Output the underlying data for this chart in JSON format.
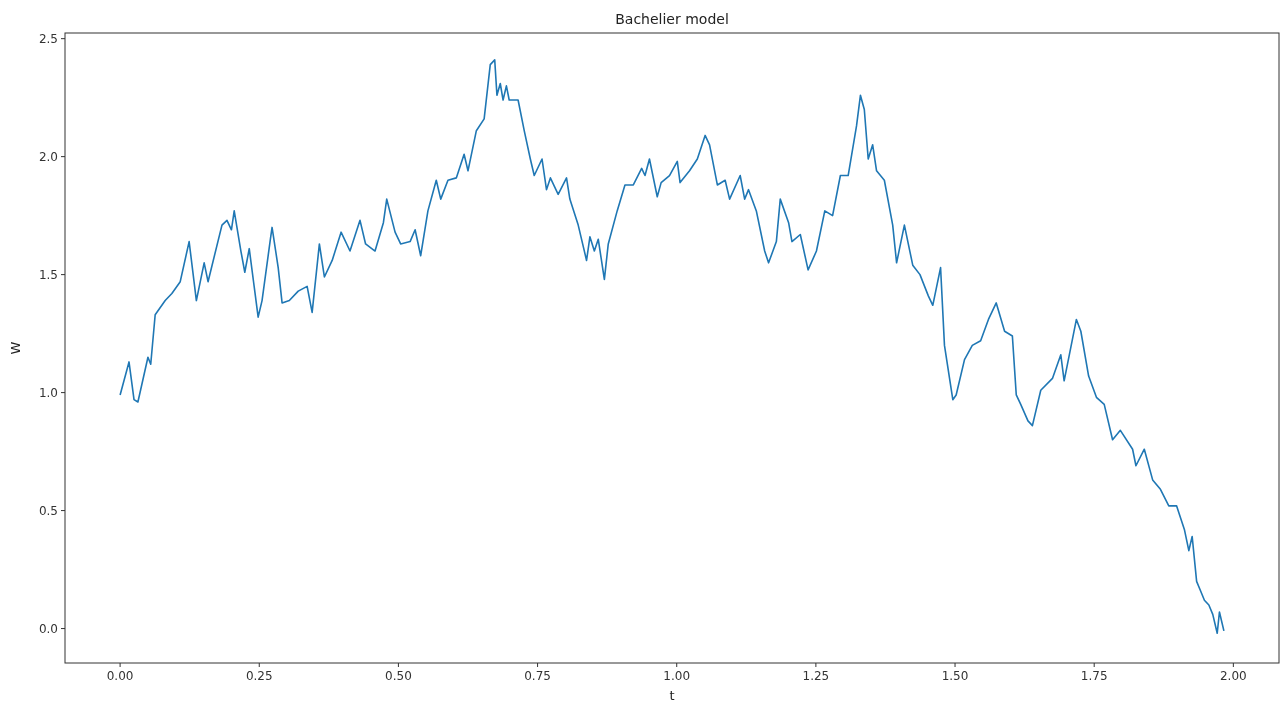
{
  "chart_data": {
    "type": "line",
    "title": "Bachelier model",
    "xlabel": "t",
    "ylabel": "W",
    "xlim": [
      -0.099,
      2.082
    ],
    "xticks": [
      {
        "value": 0,
        "label": "0.00"
      },
      0.25,
      {
        "value": 0.5,
        "label": "0.50"
      },
      0.75,
      {
        "value": 1,
        "label": "1.00"
      },
      1.25,
      {
        "value": 1.5,
        "label": "1.50"
      },
      1.75,
      {
        "value": 2,
        "label": "2.00"
      }
    ],
    "ylim": [
      -0.146,
      2.524
    ],
    "yticks": [
      {
        "value": 0,
        "label": "0.0"
      },
      0.5,
      {
        "value": 1,
        "label": "1.0"
      },
      1.5,
      {
        "value": 2,
        "label": "2.0"
      },
      2.5
    ],
    "grid": false,
    "series": [
      {
        "color": "#1f77b4",
        "x": [
          0,
          0.016,
          0.025,
          0.032,
          0.05,
          0.055,
          0.063,
          0.081,
          0.093,
          0.108,
          0.124,
          0.137,
          0.151,
          0.158,
          0.183,
          0.192,
          0.2,
          0.205,
          0.217,
          0.224,
          0.232,
          0.248,
          0.255,
          0.27,
          0.273,
          0.284,
          0.291,
          0.304,
          0.32,
          0.336,
          0.345,
          0.358,
          0.367,
          0.381,
          0.397,
          0.413,
          0.431,
          0.441,
          0.458,
          0.473,
          0.479,
          0.494,
          0.504,
          0.521,
          0.53,
          0.54,
          0.553,
          0.568,
          0.576,
          0.589,
          0.604,
          0.618,
          0.625,
          0.64,
          0.654,
          0.665,
          0.673,
          0.677,
          0.683,
          0.688,
          0.694,
          0.699,
          0.715,
          0.726,
          0.737,
          0.744,
          0.758,
          0.766,
          0.773,
          0.787,
          0.802,
          0.808,
          0.823,
          0.838,
          0.844,
          0.852,
          0.859,
          0.87,
          0.877,
          0.893,
          0.907,
          0.922,
          0.937,
          0.943,
          0.951,
          0.965,
          0.972,
          0.987,
          1.001,
          1.006,
          1.023,
          1.037,
          1.051,
          1.059,
          1.073,
          1.087,
          1.095,
          1.114,
          1.122,
          1.129,
          1.143,
          1.158,
          1.165,
          1.179,
          1.186,
          1.201,
          1.207,
          1.222,
          1.236,
          1.251,
          1.266,
          1.28,
          1.294,
          1.308,
          1.323,
          1.33,
          1.337,
          1.344,
          1.352,
          1.359,
          1.373,
          1.388,
          1.395,
          1.409,
          1.424,
          1.437,
          1.452,
          1.46,
          1.474,
          1.481,
          1.496,
          1.502,
          1.517,
          1.531,
          1.546,
          1.56,
          1.574,
          1.589,
          1.603,
          1.61,
          1.618,
          1.631,
          1.639,
          1.654,
          1.675,
          1.69,
          1.696,
          1.718,
          1.726,
          1.74,
          1.754,
          1.768,
          1.783,
          1.797,
          1.819,
          1.825,
          1.84,
          1.855,
          1.869,
          1.884,
          1.898,
          1.912,
          1.92,
          1.926,
          1.934,
          1.941,
          1.948,
          1.956,
          1.963,
          1.971,
          1.975,
          1.983
        ],
        "values": [
          0.99,
          1.13,
          0.97,
          0.96,
          1.15,
          1.12,
          1.33,
          1.39,
          1.42,
          1.47,
          1.64,
          1.39,
          1.55,
          1.47,
          1.71,
          1.73,
          1.69,
          1.77,
          1.6,
          1.51,
          1.61,
          1.32,
          1.39,
          1.65,
          1.7,
          1.53,
          1.38,
          1.39,
          1.43,
          1.45,
          1.34,
          1.63,
          1.49,
          1.56,
          1.68,
          1.6,
          1.73,
          1.63,
          1.6,
          1.72,
          1.82,
          1.68,
          1.63,
          1.64,
          1.69,
          1.58,
          1.77,
          1.9,
          1.82,
          1.9,
          1.91,
          2.01,
          1.94,
          2.11,
          2.16,
          2.39,
          2.41,
          2.26,
          2.31,
          2.24,
          2.3,
          2.24,
          2.24,
          2.11,
          1.99,
          1.92,
          1.99,
          1.86,
          1.91,
          1.84,
          1.91,
          1.82,
          1.71,
          1.56,
          1.66,
          1.6,
          1.65,
          1.48,
          1.63,
          1.77,
          1.88,
          1.88,
          1.95,
          1.92,
          1.99,
          1.83,
          1.89,
          1.92,
          1.98,
          1.89,
          1.94,
          1.99,
          2.09,
          2.05,
          1.88,
          1.9,
          1.82,
          1.92,
          1.82,
          1.86,
          1.77,
          1.6,
          1.55,
          1.64,
          1.82,
          1.72,
          1.64,
          1.67,
          1.52,
          1.6,
          1.77,
          1.75,
          1.92,
          1.92,
          2.13,
          2.26,
          2.2,
          1.99,
          2.05,
          1.94,
          1.9,
          1.71,
          1.55,
          1.71,
          1.54,
          1.5,
          1.41,
          1.37,
          1.53,
          1.2,
          0.97,
          0.99,
          1.14,
          1.2,
          1.22,
          1.31,
          1.38,
          1.26,
          1.24,
          0.99,
          0.95,
          0.88,
          0.86,
          1.01,
          1.06,
          1.16,
          1.05,
          1.31,
          1.26,
          1.07,
          0.98,
          0.95,
          0.8,
          0.84,
          0.76,
          0.69,
          0.76,
          0.63,
          0.59,
          0.52,
          0.52,
          0.42,
          0.33,
          0.39,
          0.2,
          0.16,
          0.12,
          0.1,
          0.06,
          -0.02,
          0.07,
          -0.01
        ]
      }
    ]
  }
}
